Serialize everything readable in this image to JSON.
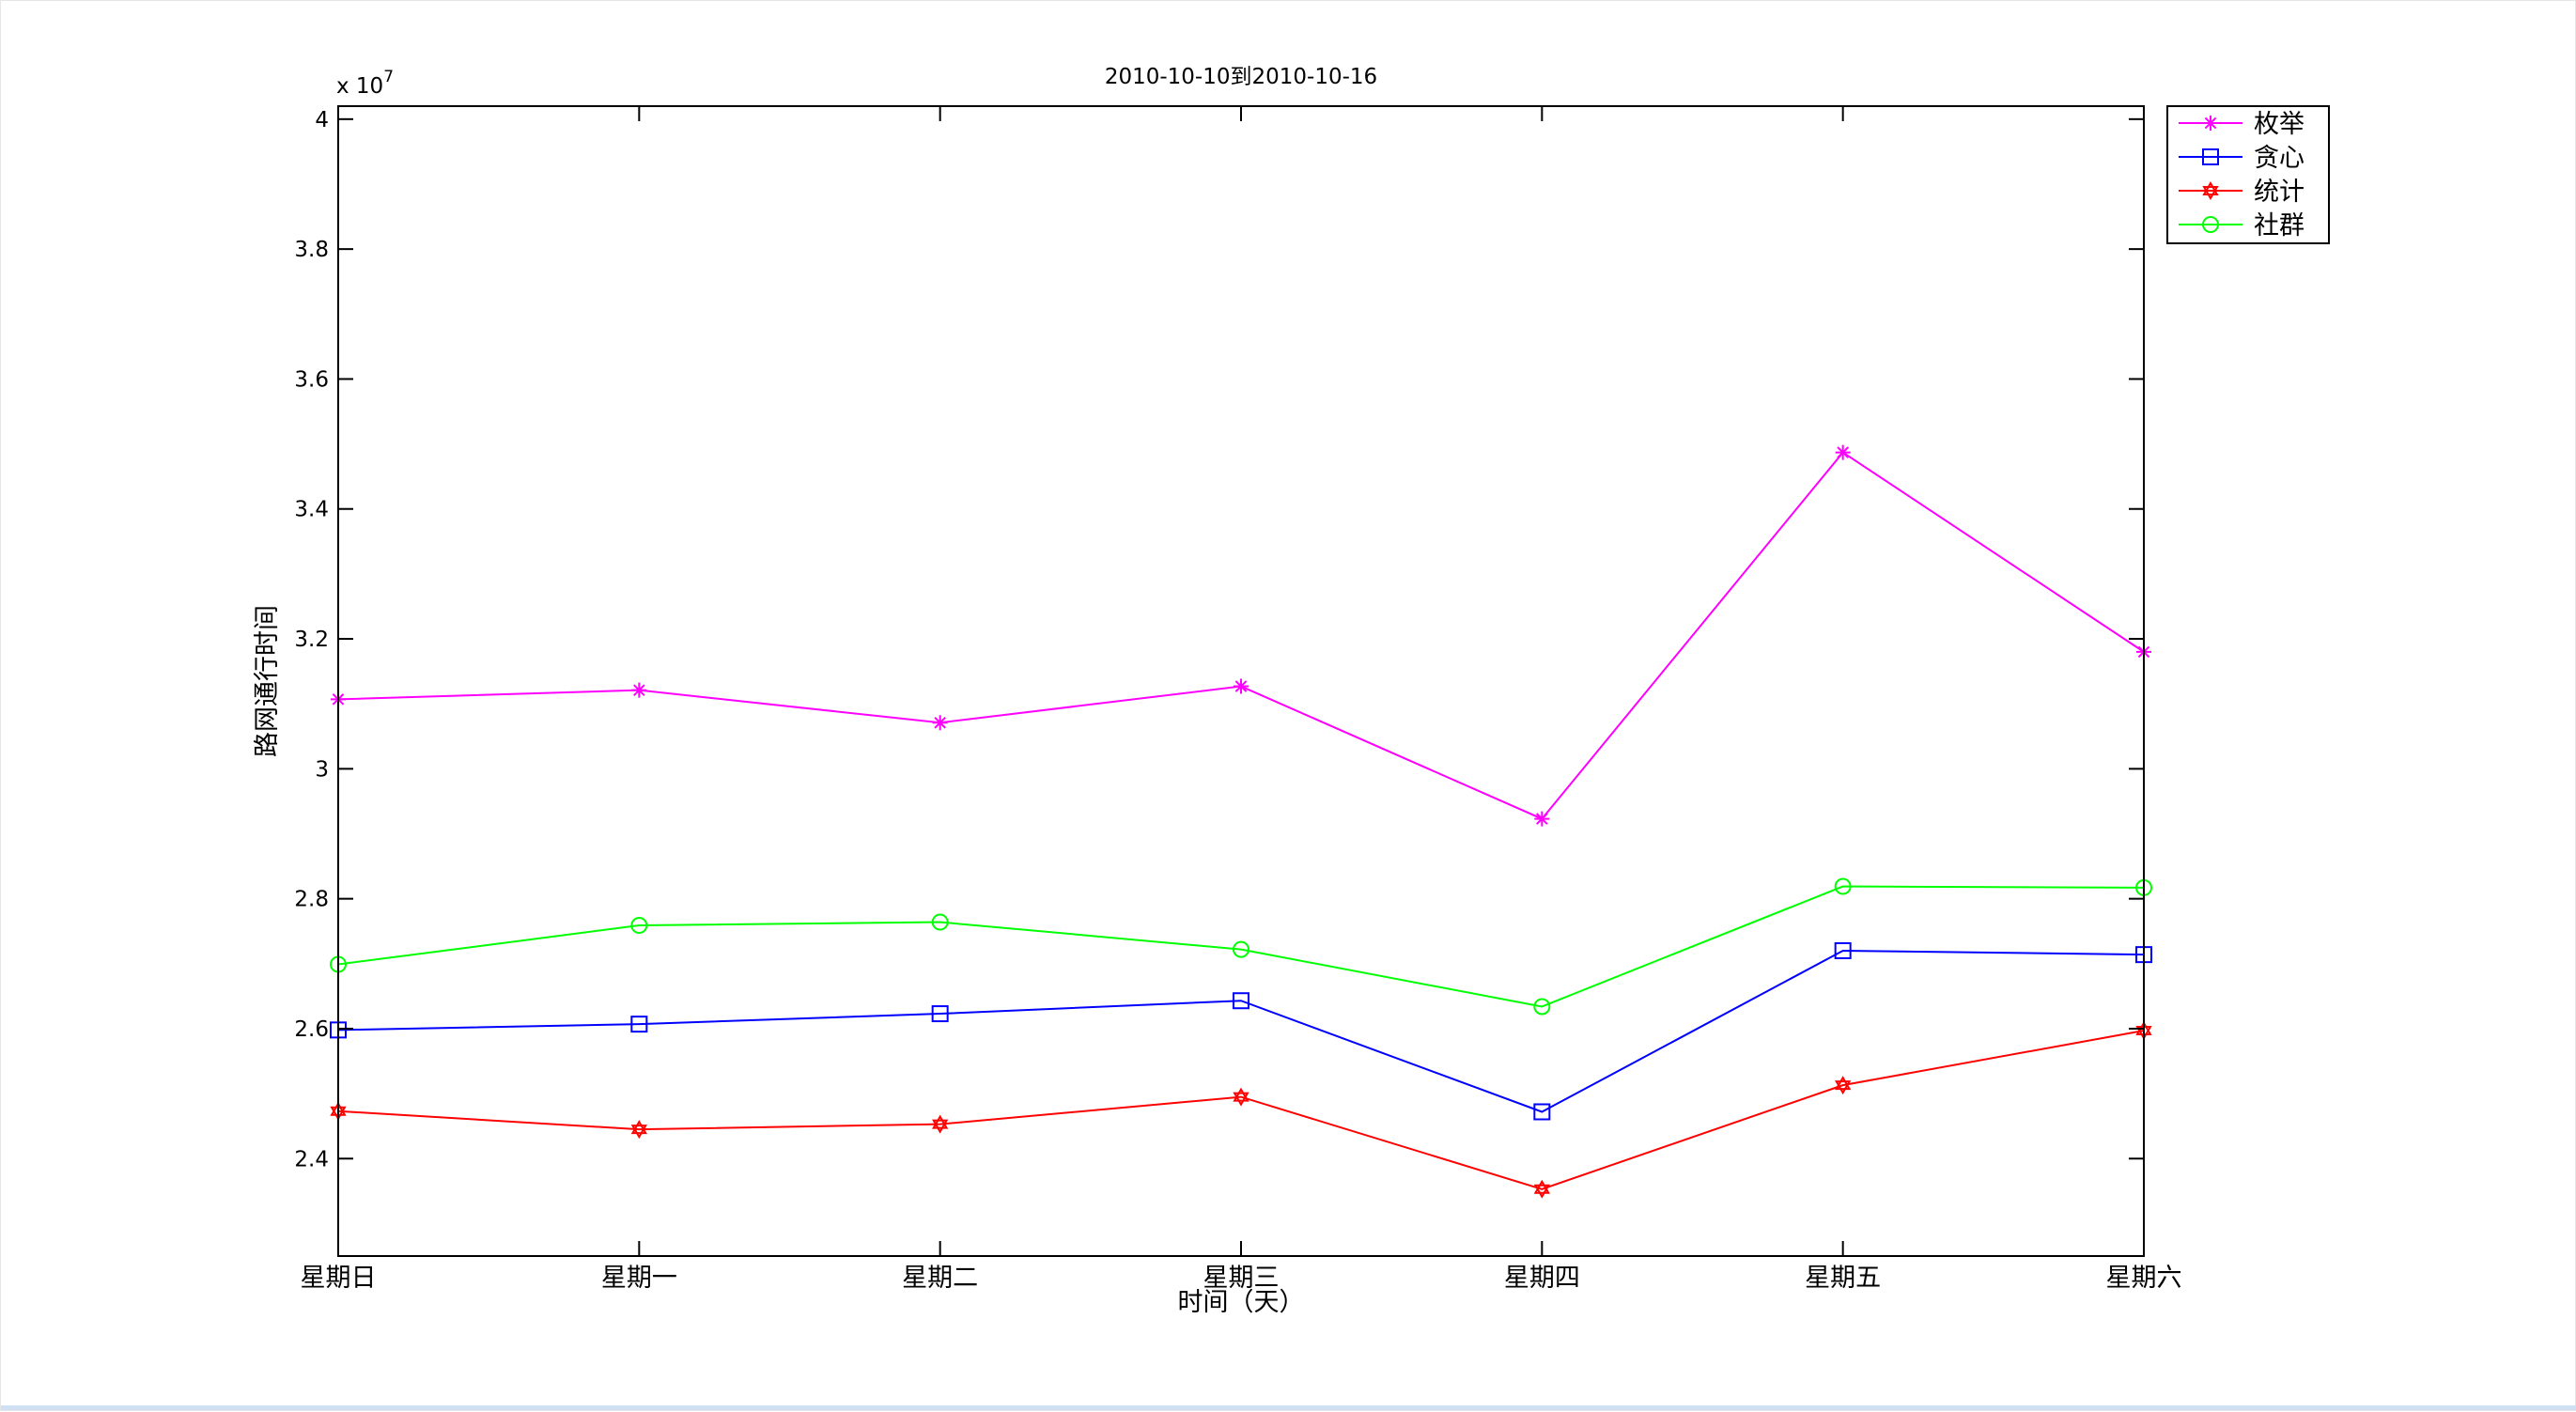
{
  "chart_data": {
    "type": "line",
    "title": "2010-10-10到2010-10-16",
    "xlabel": "时间（天）",
    "ylabel": "路网通行时间",
    "y_multiplier_label": "x 10",
    "y_multiplier_exponent": "7",
    "categories": [
      "星期日",
      "星期一",
      "星期二",
      "星期三",
      "星期四",
      "星期五",
      "星期六"
    ],
    "ylim": [
      2.25,
      4.02
    ],
    "yticks": [
      2.4,
      2.6,
      2.8,
      3,
      3.2,
      3.4,
      3.6,
      3.8,
      4
    ],
    "ytick_labels": [
      "2.4",
      "2.6",
      "2.8",
      "3",
      "3.2",
      "3.4",
      "3.6",
      "3.8",
      "4"
    ],
    "grid": false,
    "legend_position": "outside-top-right",
    "series": [
      {
        "name": "枚举",
        "color": "#ff00ff",
        "marker": "asterisk",
        "values": [
          3.107,
          3.121,
          3.071,
          3.127,
          2.923,
          3.487,
          3.18
        ]
      },
      {
        "name": "贪心",
        "color": "#0000ff",
        "marker": "square",
        "values": [
          2.598,
          2.607,
          2.623,
          2.643,
          2.472,
          2.72,
          2.714
        ]
      },
      {
        "name": "统计",
        "color": "#ff0000",
        "marker": "hexagram",
        "values": [
          2.473,
          2.445,
          2.453,
          2.495,
          2.353,
          2.513,
          2.597
        ]
      },
      {
        "name": "社群",
        "color": "#00ff00",
        "marker": "circle",
        "values": [
          2.699,
          2.759,
          2.764,
          2.722,
          2.634,
          2.819,
          2.817
        ]
      }
    ]
  }
}
